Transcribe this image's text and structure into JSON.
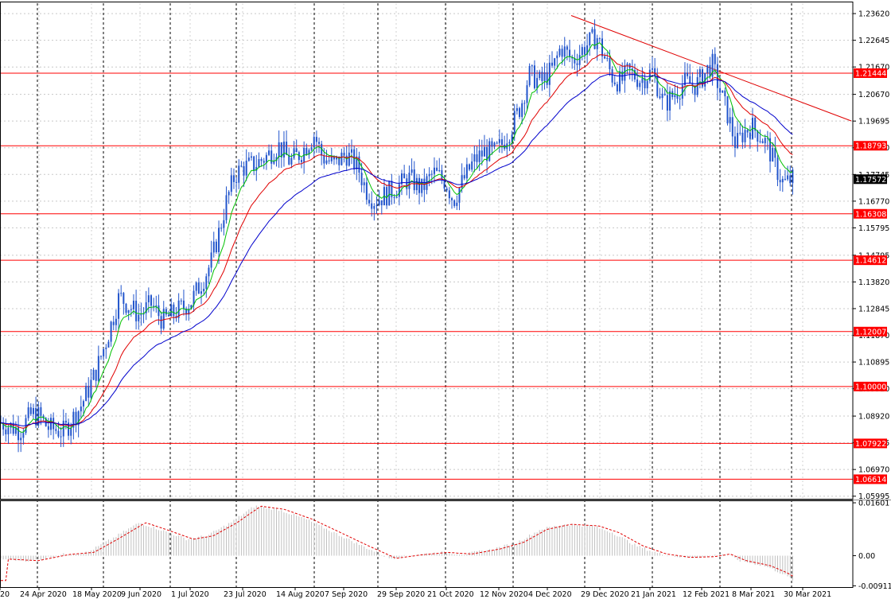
{
  "chart_data": {
    "type": "candlestick",
    "instrument_hint": "EURUSD",
    "timeframe": "D1",
    "price_panel": {
      "ylim": [
        1.059,
        1.24
      ],
      "y_ticks": [
        "1.23620",
        "1.22645",
        "1.21670",
        "1.20670",
        "1.19695",
        "1.18720",
        "1.17745",
        "1.16770",
        "1.15795",
        "1.14795",
        "1.13820",
        "1.12845",
        "1.11870",
        "1.10895",
        "1.09920",
        "1.08920",
        "1.07945",
        "1.06970",
        "1.05995"
      ],
      "current_price": "1.17572",
      "horizontal_levels": [
        "1.21444",
        "1.18793",
        "1.16308",
        "1.14612",
        "1.12007",
        "1.10000",
        "1.07922",
        "1.06614"
      ],
      "level_color": "#ff0000",
      "trendline": {
        "from": [
          "29 Dec 2020",
          1.2355
        ],
        "to": [
          "beyond 30 Mar 2021",
          1.197
        ]
      },
      "moving_averages": [
        {
          "color": "#00c000",
          "kind": "fast"
        },
        {
          "color": "#e00000",
          "kind": "medium"
        },
        {
          "color": "#0000cc",
          "kind": "slow"
        }
      ],
      "candle_color": "#2255cc",
      "grid": true
    },
    "indicator_panel": {
      "ylim": [
        -0.0095,
        0.0165
      ],
      "y_ticks": [
        "0.01601",
        "0.00",
        "-0.009117"
      ],
      "histogram_color": "#c0c0c0",
      "signal_color": "#e00000"
    },
    "x_ticks": [
      "20",
      "24 Apr 2020",
      "18 May 2020",
      "9 Jun 2020",
      "1 Jul 2020",
      "23 Jul 2020",
      "14 Aug 2020",
      "7 Sep 2020",
      "29 Sep 2020",
      "21 Oct 2020",
      "12 Nov 2020",
      "4 Dec 2020",
      "29 Dec 2020",
      "21 Jan 2021",
      "12 Feb 2021",
      "8 Mar 2021",
      "30 Mar 2021"
    ],
    "price_path": [
      [
        0,
        1.087
      ],
      [
        25,
        1.084
      ],
      [
        40,
        1.09
      ],
      [
        50,
        1.089
      ],
      [
        60,
        1.085
      ],
      [
        80,
        1.0835
      ],
      [
        100,
        1.092
      ],
      [
        110,
        1.098
      ],
      [
        120,
        1.105
      ],
      [
        135,
        1.118
      ],
      [
        150,
        1.133
      ],
      [
        160,
        1.13
      ],
      [
        175,
        1.126
      ],
      [
        190,
        1.13
      ],
      [
        205,
        1.124
      ],
      [
        220,
        1.127
      ],
      [
        240,
        1.131
      ],
      [
        255,
        1.139
      ],
      [
        265,
        1.145
      ],
      [
        275,
        1.156
      ],
      [
        285,
        1.168
      ],
      [
        295,
        1.177
      ],
      [
        305,
        1.18
      ],
      [
        320,
        1.181
      ],
      [
        335,
        1.184
      ],
      [
        350,
        1.188
      ],
      [
        365,
        1.182
      ],
      [
        380,
        1.186
      ],
      [
        395,
        1.192
      ],
      [
        405,
        1.184
      ],
      [
        420,
        1.181
      ],
      [
        435,
        1.185
      ],
      [
        450,
        1.18
      ],
      [
        460,
        1.172
      ],
      [
        470,
        1.168
      ],
      [
        485,
        1.17
      ],
      [
        500,
        1.173
      ],
      [
        515,
        1.176
      ],
      [
        530,
        1.172
      ],
      [
        545,
        1.178
      ],
      [
        560,
        1.175
      ],
      [
        570,
        1.168
      ],
      [
        580,
        1.174
      ],
      [
        595,
        1.182
      ],
      [
        610,
        1.186
      ],
      [
        620,
        1.185
      ],
      [
        630,
        1.188
      ],
      [
        645,
        1.196
      ],
      [
        655,
        1.203
      ],
      [
        665,
        1.214
      ],
      [
        680,
        1.211
      ],
      [
        695,
        1.216
      ],
      [
        705,
        1.224
      ],
      [
        720,
        1.219
      ],
      [
        735,
        1.224
      ],
      [
        750,
        1.228
      ],
      [
        760,
        1.22
      ],
      [
        770,
        1.213
      ],
      [
        780,
        1.211
      ],
      [
        790,
        1.215
      ],
      [
        805,
        1.212
      ],
      [
        820,
        1.215
      ],
      [
        835,
        1.203
      ],
      [
        845,
        1.206
      ],
      [
        860,
        1.211
      ],
      [
        875,
        1.21
      ],
      [
        885,
        1.214
      ],
      [
        895,
        1.218
      ],
      [
        905,
        1.208
      ],
      [
        915,
        1.199
      ],
      [
        925,
        1.188
      ],
      [
        935,
        1.193
      ],
      [
        945,
        1.195
      ],
      [
        955,
        1.192
      ],
      [
        965,
        1.188
      ],
      [
        975,
        1.18
      ],
      [
        985,
        1.174
      ],
      [
        998,
        1.176
      ]
    ],
    "indicator_path": [
      [
        0,
        -0.001
      ],
      [
        40,
        -0.0015
      ],
      [
        80,
        0.0004
      ],
      [
        110,
        0.001
      ],
      [
        140,
        0.005
      ],
      [
        175,
        0.01
      ],
      [
        200,
        0.008
      ],
      [
        235,
        0.005
      ],
      [
        260,
        0.006
      ],
      [
        290,
        0.01
      ],
      [
        320,
        0.015
      ],
      [
        350,
        0.014
      ],
      [
        385,
        0.011
      ],
      [
        420,
        0.007
      ],
      [
        455,
        0.003
      ],
      [
        490,
        -0.0008
      ],
      [
        520,
        0.0002
      ],
      [
        555,
        0.001
      ],
      [
        585,
        0.0005
      ],
      [
        620,
        0.002
      ],
      [
        650,
        0.004
      ],
      [
        680,
        0.008
      ],
      [
        710,
        0.0095
      ],
      [
        745,
        0.009
      ],
      [
        770,
        0.007
      ],
      [
        800,
        0.003
      ],
      [
        830,
        0.0005
      ],
      [
        860,
        -0.0005
      ],
      [
        890,
        -0.0003
      ],
      [
        910,
        0.0005
      ],
      [
        930,
        -0.0015
      ],
      [
        960,
        -0.003
      ],
      [
        980,
        -0.005
      ],
      [
        998,
        -0.0075
      ]
    ]
  }
}
